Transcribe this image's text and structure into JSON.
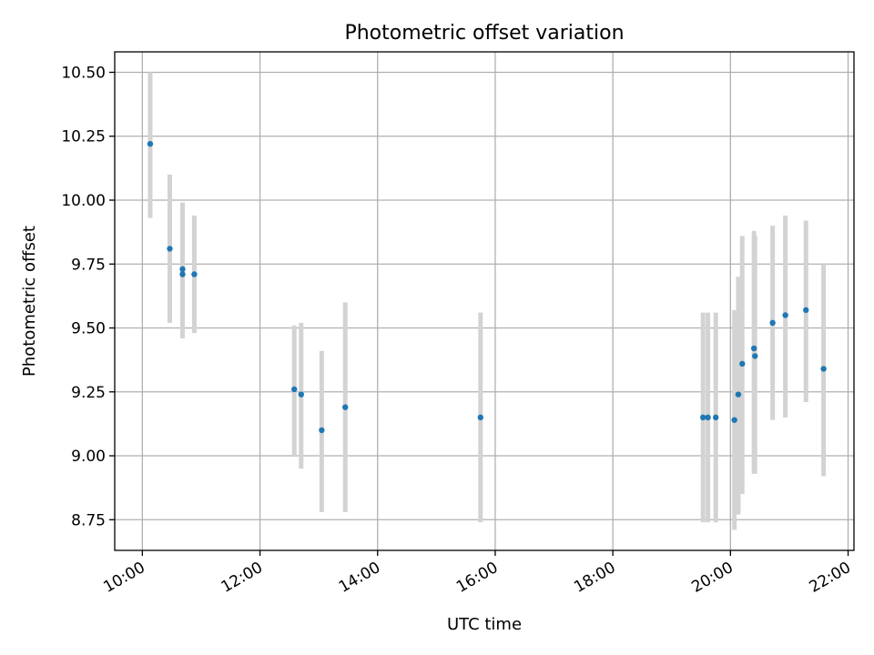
{
  "chart_data": {
    "type": "scatter",
    "title": "Photometric offset variation",
    "xlabel": "UTC time",
    "ylabel": "Photometric offset",
    "x_unit": "hours UTC",
    "xlim": [
      "10:00",
      "22:00"
    ],
    "ylim": [
      8.63,
      10.58
    ],
    "x_ticks": [
      "10:00",
      "12:00",
      "14:00",
      "16:00",
      "18:00",
      "20:00",
      "22:00"
    ],
    "y_ticks": [
      "8.75",
      "9.00",
      "9.25",
      "9.50",
      "9.75",
      "10.00",
      "10.25",
      "10.50"
    ],
    "grid": true,
    "marker_color": "#1f77b4",
    "errorbar_color": "#d3d3d3",
    "series": [
      {
        "points": [
          {
            "x": "10:08",
            "y": 10.22,
            "ylo": 9.93,
            "yhi": 10.5
          },
          {
            "x": "10:28",
            "y": 9.81,
            "ylo": 9.52,
            "yhi": 10.1
          },
          {
            "x": "10:41",
            "y": 9.73,
            "ylo": 9.46,
            "yhi": 9.99
          },
          {
            "x": "10:41",
            "y": 9.71,
            "ylo": 9.46,
            "yhi": 9.99
          },
          {
            "x": "10:53",
            "y": 9.71,
            "ylo": 9.48,
            "yhi": 9.94
          },
          {
            "x": "12:35",
            "y": 9.26,
            "ylo": 9.0,
            "yhi": 9.51
          },
          {
            "x": "12:42",
            "y": 9.24,
            "ylo": 8.95,
            "yhi": 9.52
          },
          {
            "x": "13:03",
            "y": 9.1,
            "ylo": 8.78,
            "yhi": 9.41
          },
          {
            "x": "13:27",
            "y": 9.19,
            "ylo": 8.78,
            "yhi": 9.6
          },
          {
            "x": "15:45",
            "y": 9.15,
            "ylo": 8.74,
            "yhi": 9.56
          },
          {
            "x": "19:32",
            "y": 9.15,
            "ylo": 8.74,
            "yhi": 9.56
          },
          {
            "x": "19:37",
            "y": 9.15,
            "ylo": 8.74,
            "yhi": 9.56
          },
          {
            "x": "19:45",
            "y": 9.15,
            "ylo": 8.74,
            "yhi": 9.56
          },
          {
            "x": "20:04",
            "y": 9.14,
            "ylo": 8.71,
            "yhi": 9.57
          },
          {
            "x": "20:08",
            "y": 9.24,
            "ylo": 8.77,
            "yhi": 9.7
          },
          {
            "x": "20:12",
            "y": 9.36,
            "ylo": 8.85,
            "yhi": 9.86
          },
          {
            "x": "20:24",
            "y": 9.42,
            "ylo": 8.93,
            "yhi": 9.88
          },
          {
            "x": "20:25",
            "y": 9.39,
            "ylo": 8.93,
            "yhi": 9.86
          },
          {
            "x": "20:43",
            "y": 9.52,
            "ylo": 9.14,
            "yhi": 9.9
          },
          {
            "x": "20:56",
            "y": 9.55,
            "ylo": 9.15,
            "yhi": 9.94
          },
          {
            "x": "21:17",
            "y": 9.57,
            "ylo": 9.21,
            "yhi": 9.92
          },
          {
            "x": "21:35",
            "y": 9.34,
            "ylo": 8.92,
            "yhi": 9.75
          }
        ]
      }
    ]
  }
}
